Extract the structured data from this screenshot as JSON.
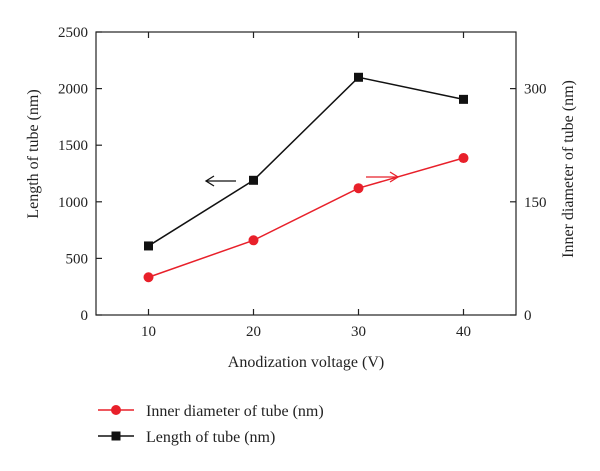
{
  "chart_data": {
    "type": "line",
    "title": "",
    "xlabel": "Anodization voltage (V)",
    "ylabel_left": "Length of tube (nm)",
    "ylabel_right": "Inner diameter of tube (nm)",
    "x": [
      10,
      20,
      30,
      40
    ],
    "x_ticks": [
      "10",
      "20",
      "30",
      "40"
    ],
    "xlim": [
      5,
      45
    ],
    "ylim_left": [
      0,
      2500
    ],
    "ylim_right": [
      0,
      375
    ],
    "yticks_left": [
      "0",
      "500",
      "1000",
      "1500",
      "2000",
      "2500"
    ],
    "yticks_right": [
      "0",
      "150",
      "300"
    ],
    "grid": false,
    "legend_placement": "bottom",
    "series": [
      {
        "name": "Inner diameter of tube (nm)",
        "axis": "right",
        "marker": "circle",
        "color": "#e8202a",
        "values": [
          50,
          99,
          168,
          208
        ],
        "arrow": "right"
      },
      {
        "name": "Length of tube (nm)",
        "axis": "left",
        "marker": "square",
        "color": "#111111",
        "values": [
          610,
          1190,
          2100,
          1905
        ],
        "arrow": "left"
      }
    ]
  }
}
